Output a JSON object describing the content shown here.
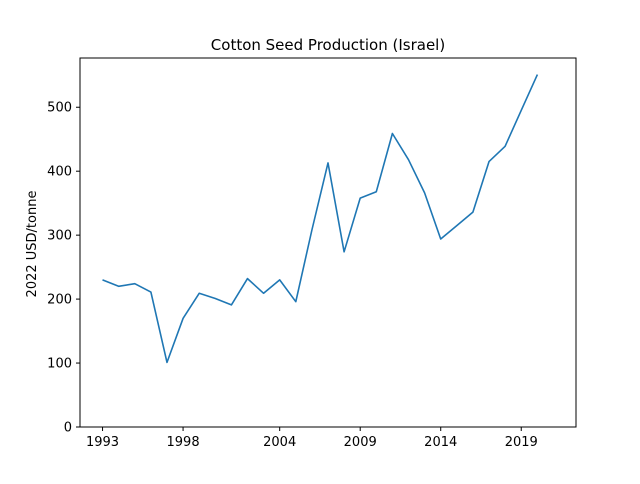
{
  "chart_data": {
    "type": "line",
    "title": "Cotton Seed Production (Israel)",
    "xlabel": "",
    "ylabel": "2022 USD/tonne",
    "xlim": [
      1991.6,
      2022.4
    ],
    "ylim": [
      0,
      577
    ],
    "x_ticks": [
      1993,
      1998,
      2004,
      2009,
      2014,
      2019
    ],
    "y_ticks": [
      0,
      100,
      200,
      300,
      400,
      500
    ],
    "grid": false,
    "line_color": "#1f77b4",
    "series": [
      {
        "x": [
          1993,
          1994,
          1995,
          1996,
          1997,
          1998,
          1999,
          2000,
          2001,
          2002,
          2003,
          2004,
          2005,
          2006,
          2007,
          2008,
          2009,
          2010,
          2011,
          2012,
          2013,
          2014,
          2015,
          2016,
          2017,
          2018,
          2019,
          2020,
          2021
        ],
        "values": [
          230,
          220,
          224,
          211,
          101,
          170,
          209,
          201,
          191,
          232,
          209,
          230,
          196,
          308,
          413,
          274,
          358,
          368,
          459,
          418,
          366,
          294,
          315,
          336,
          415,
          439,
          495,
          551,
          null
        ]
      }
    ]
  }
}
